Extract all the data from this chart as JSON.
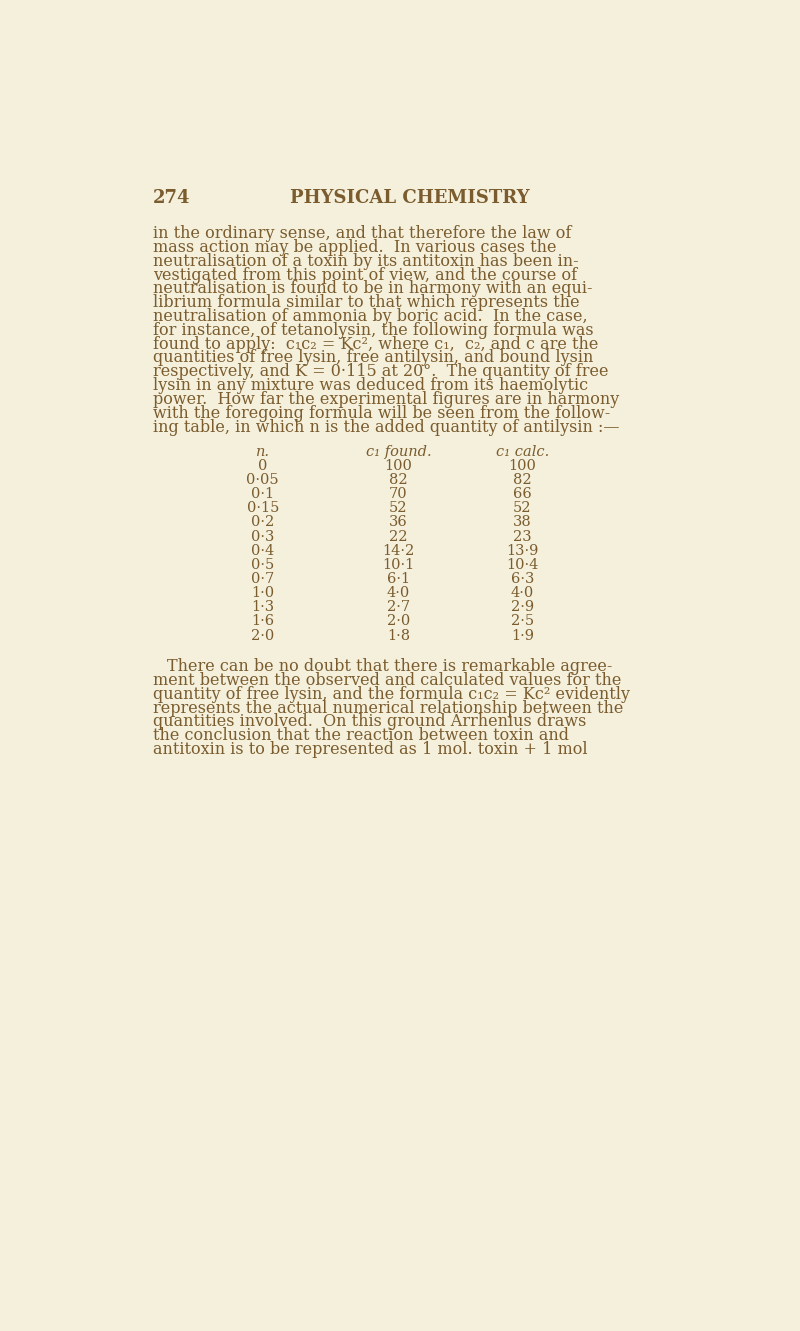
{
  "background_color": "#f5f0dc",
  "text_color": "#7a5c2e",
  "page_number": "274",
  "page_title": "PHYSICAL CHEMISTRY",
  "header_fontsize": 13,
  "body_fontsize": 11.5,
  "small_fontsize": 10.5,
  "table_header": [
    "n.",
    "c₁ found.",
    "c₁ calc."
  ],
  "table_data": [
    [
      "0",
      "100",
      "100"
    ],
    [
      "0·05",
      "82",
      "82"
    ],
    [
      "0·1",
      "70",
      "66"
    ],
    [
      "0·15",
      "52",
      "52"
    ],
    [
      "0·2",
      "36",
      "38"
    ],
    [
      "0·3",
      "22",
      "23"
    ],
    [
      "0·4",
      "14·2",
      "13·9"
    ],
    [
      "0·5",
      "10·1",
      "10·4"
    ],
    [
      "0·7",
      "6·1",
      "6·3"
    ],
    [
      "1·0",
      "4·0",
      "4·0"
    ],
    [
      "1·3",
      "2·7",
      "2·9"
    ],
    [
      "1·6",
      "2·0",
      "2·5"
    ],
    [
      "2·0",
      "1·8",
      "1·9"
    ]
  ],
  "para1_lines": [
    "in the ordinary sense, and that therefore the law of",
    "mass action may be applied.  In various cases the",
    "neutralisation of a toxin by its antitoxin has been in-",
    "vestigated from this point of view, and the course of",
    "neutralisation is found to be in harmony with an equi-",
    "librium formula similar to that which represents the",
    "neutralisation of ammonia by boric acid.  In the case,",
    "for instance, of tetanolysin, the following formula was",
    "found to apply:  c₁c₂ = Kc², where c₁,  c₂, and c are the",
    "quantities of free lysin, free antilysin, and bound lysin",
    "respectively, and K = 0·115 at 20°.  The quantity of free",
    "lysin in any mixture was deduced from its haemolytic",
    "power.  How far the experimental figures are in harmony",
    "with the foregoing formula will be seen from the follow-",
    "ing table, in which n is the added quantity of antilysin :—"
  ],
  "para2_lines": [
    "There can be no doubt that there is remarkable agree-",
    "ment between the observed and calculated values for the",
    "quantity of free lysin, and the formula c₁c₂ = Kc² evidently",
    "represents the actual numerical relationship between the",
    "quantities involved.  On this ground Arrhenius draws",
    "the conclusion that the reaction between toxin and",
    "antitoxin is to be represented as 1 mol. toxin + 1 mol"
  ]
}
